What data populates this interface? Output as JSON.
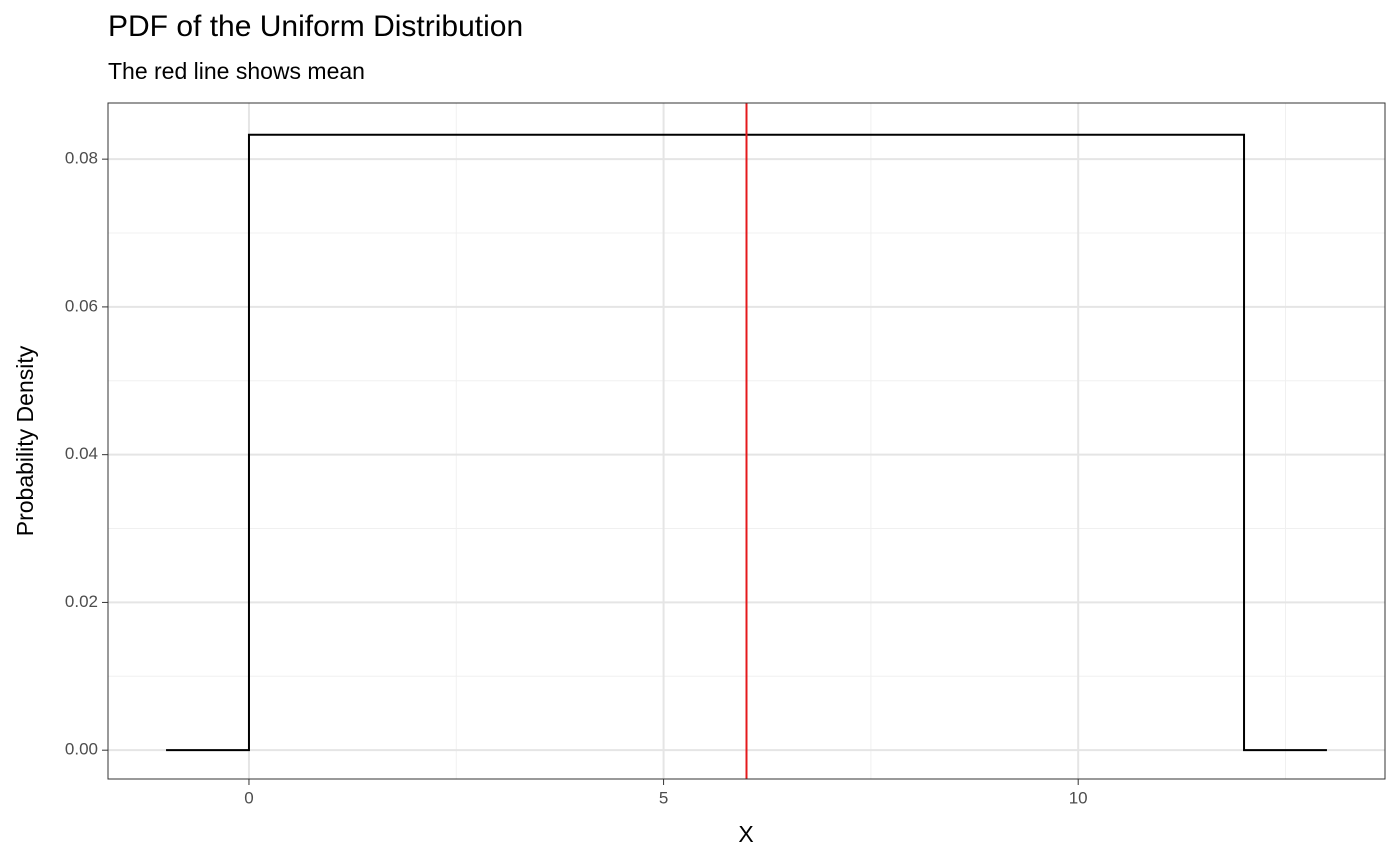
{
  "chart_data": {
    "type": "line",
    "title": "PDF of the Uniform Distribution",
    "subtitle": "The red line shows mean",
    "x_label": "X",
    "y_label": "Probability Density",
    "x": [
      -1,
      0,
      0,
      12,
      12,
      13
    ],
    "series": [
      {
        "color": "#000000",
        "values": [
          0,
          0,
          0.0833,
          0.0833,
          0,
          0
        ]
      }
    ],
    "vline": {
      "x": 6,
      "color": "#e41a1c"
    },
    "xlim": [
      -1.7,
      13.7
    ],
    "ylim": [
      -0.0039,
      0.0876
    ],
    "xticks": [
      0,
      5,
      10
    ],
    "yticks": [
      {
        "value": 0,
        "label": "0.00"
      },
      {
        "value": 0.02,
        "label": "0.02"
      },
      {
        "value": 0.04,
        "label": "0.04"
      },
      {
        "value": 0.06,
        "label": "0.06"
      },
      {
        "value": 0.08,
        "label": "0.08"
      }
    ],
    "x_minor_ticks": [
      2.5,
      7.5,
      12.5
    ],
    "y_minor_ticks": [
      0.01,
      0.03,
      0.05,
      0.07
    ],
    "grid": true
  }
}
